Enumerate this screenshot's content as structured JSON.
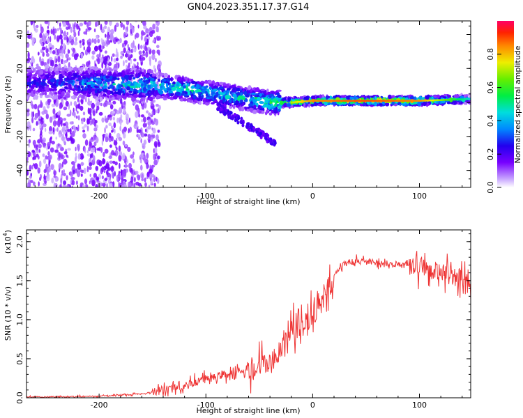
{
  "title": "GN04.2023.351.17.37.G14",
  "chart_data": [
    {
      "type": "heatmap",
      "xlabel": "Height of straight line (km)",
      "ylabel": "Frequency (Hz)",
      "xlim": [
        -268,
        148
      ],
      "ylim": [
        -50,
        48
      ],
      "x_ticks": [
        -200,
        -100,
        0,
        100
      ],
      "y_ticks": [
        -40,
        -20,
        0,
        20,
        40
      ],
      "colorbar": {
        "label": "Normalized spectral amplitude",
        "range": [
          0.0,
          1.0
        ],
        "ticks": [
          0.0,
          0.2,
          0.4,
          0.6,
          0.8
        ],
        "tick_labels": [
          "0.0",
          "0.2",
          "0.4",
          "0.6",
          "0.8"
        ]
      },
      "ridge": {
        "x": [
          -250,
          -200,
          -150,
          -120,
          -100,
          -80,
          -60,
          -40,
          -20,
          0,
          50,
          100,
          148
        ],
        "freq": [
          12,
          11,
          10,
          8,
          6,
          4,
          2,
          0,
          0,
          1,
          1,
          1,
          2
        ],
        "amplitude": [
          0.3,
          0.45,
          0.55,
          0.55,
          0.5,
          0.5,
          0.55,
          0.6,
          0.7,
          0.85,
          0.9,
          0.85,
          0.45
        ]
      }
    },
    {
      "type": "line",
      "xlabel": "Height of straight line (km)",
      "ylabel": "SNR (10 * v/v)",
      "y_scale_label": "(x10",
      "y_scale_exponent": "4",
      "xlim": [
        -268,
        148
      ],
      "ylim": [
        0,
        2.15
      ],
      "x_ticks": [
        -200,
        -100,
        0,
        100
      ],
      "y_ticks": [
        0.0,
        0.5,
        1.0,
        1.5,
        2.0
      ],
      "y_tick_labels": [
        "0.0",
        "0.5",
        "1.0",
        "1.5",
        "2.0"
      ],
      "color": "#ee3333",
      "series": [
        {
          "x": [
            -268,
            -200,
            -160,
            -140,
            -120,
            -100,
            -80,
            -60,
            -40,
            -30,
            -20,
            -10,
            0,
            10,
            20,
            30,
            40,
            60,
            80,
            100,
            120,
            148
          ],
          "y": [
            0.01,
            0.02,
            0.05,
            0.1,
            0.15,
            0.25,
            0.3,
            0.38,
            0.45,
            0.6,
            0.85,
            0.95,
            1.1,
            1.3,
            1.55,
            1.72,
            1.75,
            1.73,
            1.7,
            1.68,
            1.6,
            1.5
          ]
        }
      ]
    }
  ]
}
